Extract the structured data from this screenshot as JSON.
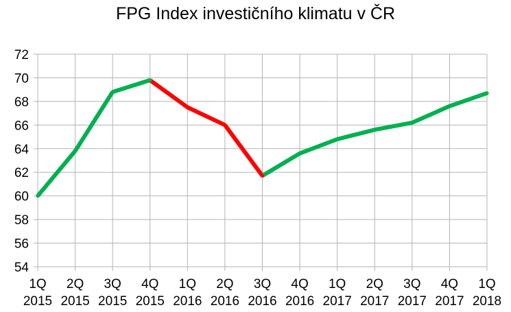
{
  "chart_data": {
    "type": "line",
    "title": "FPG Index investičního klimatu v ČR",
    "xlabel": "",
    "ylabel": "",
    "categories": [
      [
        "1Q",
        "2015"
      ],
      [
        "2Q",
        "2015"
      ],
      [
        "3Q",
        "2015"
      ],
      [
        "4Q",
        "2015"
      ],
      [
        "1Q",
        "2016"
      ],
      [
        "2Q",
        "2016"
      ],
      [
        "3Q",
        "2016"
      ],
      [
        "4Q",
        "2016"
      ],
      [
        "1Q",
        "2017"
      ],
      [
        "2Q",
        "2017"
      ],
      [
        "3Q",
        "2017"
      ],
      [
        "4Q",
        "2017"
      ],
      [
        "1Q",
        "2018"
      ]
    ],
    "values": [
      60.0,
      63.8,
      68.8,
      69.8,
      67.5,
      66.0,
      61.7,
      63.6,
      64.8,
      65.6,
      66.2,
      67.6,
      68.7
    ],
    "ylim": [
      54,
      72
    ],
    "yticks": [
      54,
      56,
      58,
      60,
      62,
      64,
      66,
      68,
      70,
      72
    ],
    "grid": true,
    "legend": "none",
    "colors": {
      "rising": "#00b050",
      "falling": "#ff0000",
      "grid": "#b3b3b3",
      "axis": "#b3b3b3"
    }
  }
}
